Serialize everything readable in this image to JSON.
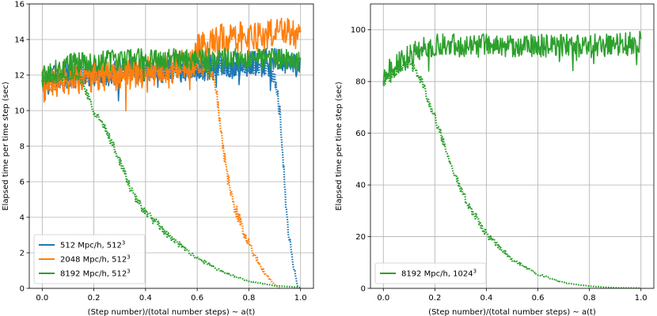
{
  "chart_data": [
    {
      "type": "line",
      "xlabel": "(Step number)/(total number steps) ~ a(t)",
      "ylabel": "Elapsed time per time step (sec)",
      "xlim": [
        -0.05,
        1.05
      ],
      "ylim": [
        0,
        16
      ],
      "xticks": [
        0.0,
        0.2,
        0.4,
        0.6,
        0.8,
        1.0
      ],
      "xtick_labels": [
        "0.0",
        "0.2",
        "0.4",
        "0.6",
        "0.8",
        "1.0"
      ],
      "yticks": [
        0,
        2,
        4,
        6,
        8,
        10,
        12,
        14,
        16
      ],
      "ytick_labels": [
        "0",
        "2",
        "4",
        "6",
        "8",
        "10",
        "12",
        "14",
        "16"
      ],
      "grid": true,
      "legend_position": "lower-left",
      "series": [
        {
          "name": "512 Mpc/h, 512³",
          "legend_main": "512 Mpc/h, 512",
          "legend_sup": "3",
          "color": "#1f77b4",
          "solid": {
            "x": [
              0.0,
              0.1,
              0.2,
              0.3,
              0.4,
              0.5,
              0.6,
              0.7,
              0.75,
              0.8,
              0.85,
              0.9,
              0.95,
              1.0
            ],
            "y": [
              11.6,
              12.0,
              12.1,
              12.2,
              12.3,
              12.4,
              12.4,
              12.5,
              12.6,
              12.6,
              12.7,
              12.7,
              12.6,
              12.5
            ],
            "noise": 0.8
          },
          "dotted": {
            "x": [
              0.0,
              0.1,
              0.3,
              0.5,
              0.7,
              0.85,
              0.9,
              0.92,
              0.93,
              0.94,
              0.95,
              0.97,
              0.99
            ],
            "y": [
              11.6,
              12.0,
              12.2,
              12.3,
              12.4,
              12.5,
              11.8,
              10.0,
              8.0,
              5.5,
              3.5,
              1.5,
              0.0
            ],
            "noise": 0.5
          }
        },
        {
          "name": "2048 Mpc/h, 512³",
          "legend_main": "2048 Mpc/h, 512",
          "legend_sup": "3",
          "color": "#ff7f0e",
          "solid": {
            "x": [
              0.0,
              0.1,
              0.2,
              0.3,
              0.4,
              0.5,
              0.58,
              0.6,
              0.65,
              0.7,
              0.8,
              0.9,
              1.0
            ],
            "y": [
              11.4,
              11.8,
              11.9,
              12.0,
              12.2,
              12.4,
              12.7,
              13.4,
              13.8,
              14.0,
              14.2,
              14.3,
              14.3
            ],
            "noise": 0.9
          },
          "dotted": {
            "x": [
              0.0,
              0.2,
              0.4,
              0.6,
              0.66,
              0.68,
              0.7,
              0.72,
              0.74,
              0.78,
              0.82,
              0.86,
              0.9,
              0.92
            ],
            "y": [
              11.4,
              11.9,
              12.2,
              12.5,
              12.0,
              10.5,
              8.0,
              6.0,
              4.8,
              3.2,
              1.9,
              0.9,
              0.2,
              0.0
            ],
            "noise": 0.4
          }
        },
        {
          "name": "8192 Mpc/h, 512³",
          "legend_main": "8192 Mpc/h, 512",
          "legend_sup": "3",
          "color": "#2ca02c",
          "solid": {
            "x": [
              0.0,
              0.1,
              0.2,
              0.3,
              0.4,
              0.5,
              0.6,
              0.7,
              0.8,
              0.9,
              1.0
            ],
            "y": [
              12.0,
              12.6,
              12.8,
              12.8,
              12.9,
              12.9,
              12.9,
              12.9,
              12.9,
              12.9,
              12.8
            ],
            "noise": 0.6
          },
          "dotted": {
            "x": [
              0.0,
              0.1,
              0.15,
              0.2,
              0.25,
              0.3,
              0.35,
              0.4,
              0.5,
              0.6,
              0.7,
              0.8,
              0.9,
              1.0
            ],
            "y": [
              11.6,
              12.0,
              11.8,
              10.0,
              8.8,
              7.2,
              5.3,
              4.3,
              2.8,
              1.7,
              0.9,
              0.4,
              0.15,
              0.05
            ],
            "noise": 0.25
          }
        }
      ]
    },
    {
      "type": "line",
      "xlabel": "(Step number)/(total number steps) ~ a(t)",
      "ylabel": "Elapsed time per time step (sec)",
      "xlim": [
        -0.05,
        1.05
      ],
      "ylim": [
        0,
        110
      ],
      "xticks": [
        0.0,
        0.2,
        0.4,
        0.6,
        0.8,
        1.0
      ],
      "xtick_labels": [
        "0.0",
        "0.2",
        "0.4",
        "0.6",
        "0.8",
        "1.0"
      ],
      "yticks": [
        0,
        20,
        40,
        60,
        80,
        100
      ],
      "ytick_labels": [
        "0",
        "20",
        "40",
        "60",
        "80",
        "100"
      ],
      "grid": true,
      "legend_position": "lower-left",
      "series": [
        {
          "name": "8192 Mpc/h, 1024³",
          "legend_main": "8192 Mpc/h, 1024",
          "legend_sup": "3",
          "color": "#2ca02c",
          "solid": {
            "x": [
              0.0,
              0.05,
              0.1,
              0.15,
              0.2,
              0.3,
              0.4,
              0.5,
              0.6,
              0.7,
              0.8,
              0.9,
              1.0
            ],
            "y": [
              83.0,
              86.0,
              90.0,
              93.0,
              94.0,
              94.0,
              94.0,
              94.0,
              94.0,
              94.0,
              94.0,
              94.0,
              95.0
            ],
            "noise": 4.5
          },
          "dotted": {
            "x": [
              0.0,
              0.05,
              0.1,
              0.15,
              0.2,
              0.25,
              0.3,
              0.35,
              0.4,
              0.5,
              0.6,
              0.7,
              0.8,
              0.9,
              1.0
            ],
            "y": [
              80.0,
              84.0,
              88.0,
              80.0,
              66.0,
              52.0,
              38.0,
              29.0,
              21.0,
              11.0,
              5.5,
              2.2,
              0.8,
              0.2,
              0.05
            ],
            "noise": 1.8
          }
        }
      ]
    }
  ]
}
